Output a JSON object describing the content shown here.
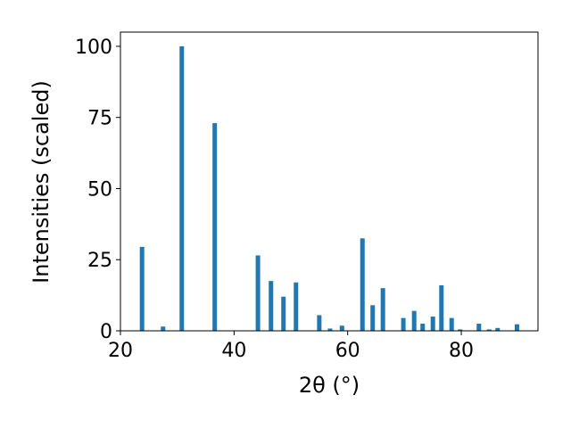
{
  "chart_data": {
    "type": "bar",
    "x_label": "2θ (°)",
    "y_label": "Intensities (scaled)",
    "x": [
      23.8,
      27.5,
      30.8,
      36.6,
      44.2,
      46.5,
      48.7,
      50.9,
      55.0,
      56.9,
      59.0,
      62.6,
      64.4,
      66.2,
      69.8,
      71.7,
      73.2,
      75.0,
      76.5,
      78.3,
      79.8,
      83.1,
      84.9,
      86.4,
      89.8
    ],
    "values": [
      29.5,
      1.5,
      100,
      73,
      26.5,
      17.5,
      12,
      17,
      5.5,
      0.8,
      1.8,
      32.5,
      9,
      15,
      4.5,
      7,
      2.5,
      5,
      16,
      4.5,
      0.5,
      2.5,
      0.5,
      1,
      2.3
    ],
    "color": "#1f77b4",
    "xlim": [
      20,
      93.5
    ],
    "xticks": [
      20,
      40,
      60,
      80
    ],
    "ylim": [
      0,
      105
    ],
    "yticks": [
      0,
      25,
      50,
      75,
      100
    ]
  }
}
